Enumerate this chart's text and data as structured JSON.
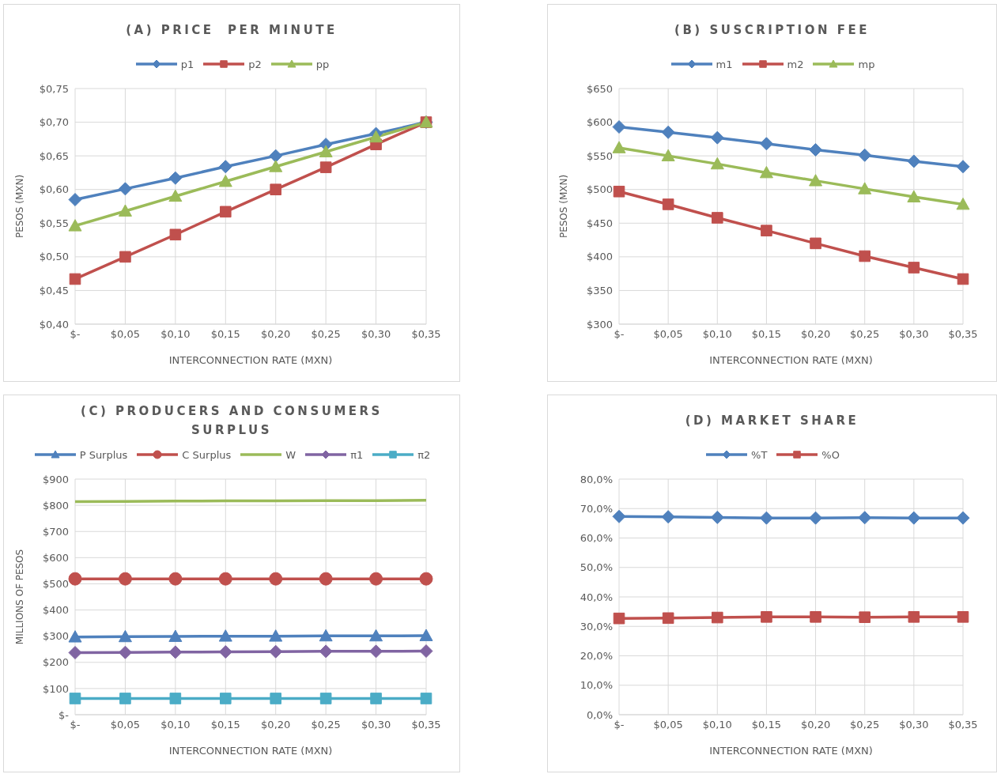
{
  "chart_data": [
    {
      "type": "line",
      "title": "(A) PRICE  PER MINUTE",
      "xlabel": "INTERCONNECTION RATE (MXN)",
      "ylabel": "PESOS (MXN)",
      "categories": [
        "$-",
        "$0,05",
        "$0,10",
        "$0,15",
        "$0,20",
        "$0,25",
        "$0,30",
        "$0,35"
      ],
      "ylim": [
        0.4,
        0.75
      ],
      "yticks": [
        {
          "value": 0.4,
          "label": "$0,40"
        },
        {
          "value": 0.45,
          "label": "$0,45"
        },
        {
          "value": 0.5,
          "label": "$0,50"
        },
        {
          "value": 0.55,
          "label": "$0,55"
        },
        {
          "value": 0.6,
          "label": "$0,60"
        },
        {
          "value": 0.65,
          "label": "$0,65"
        },
        {
          "value": 0.7,
          "label": "$0,70"
        },
        {
          "value": 0.75,
          "label": "$0,75"
        }
      ],
      "grid": true,
      "legend": "top",
      "series": [
        {
          "name": "p1",
          "color": "#4f81bd",
          "marker": "diamond",
          "values": [
            0.585,
            0.601,
            0.617,
            0.634,
            0.65,
            0.667,
            0.683,
            0.7
          ]
        },
        {
          "name": "p2",
          "color": "#c0504d",
          "marker": "square",
          "values": [
            0.467,
            0.5,
            0.533,
            0.567,
            0.6,
            0.633,
            0.667,
            0.7
          ]
        },
        {
          "name": "pp",
          "color": "#9bbb59",
          "marker": "triangle",
          "values": [
            0.546,
            0.568,
            0.59,
            0.612,
            0.634,
            0.656,
            0.678,
            0.7
          ]
        }
      ]
    },
    {
      "type": "line",
      "title": "(B) SUSCRIPTION FEE",
      "xlabel": "INTERCONNECTION RATE (MXN)",
      "ylabel": "PESOS (MXN)",
      "categories": [
        "$-",
        "$0,05",
        "$0,10",
        "$0,15",
        "$0,20",
        "$0,25",
        "$0,30",
        "$0,35"
      ],
      "ylim": [
        300,
        650
      ],
      "yticks": [
        {
          "value": 300,
          "label": "$300"
        },
        {
          "value": 350,
          "label": "$350"
        },
        {
          "value": 400,
          "label": "$400"
        },
        {
          "value": 450,
          "label": "$450"
        },
        {
          "value": 500,
          "label": "$500"
        },
        {
          "value": 550,
          "label": "$550"
        },
        {
          "value": 600,
          "label": "$600"
        },
        {
          "value": 650,
          "label": "$650"
        }
      ],
      "grid": true,
      "legend": "top",
      "series": [
        {
          "name": "m1",
          "color": "#4f81bd",
          "marker": "diamond",
          "values": [
            593,
            585,
            577,
            568,
            559,
            551,
            542,
            534
          ]
        },
        {
          "name": "m2",
          "color": "#c0504d",
          "marker": "square",
          "values": [
            497,
            478,
            458,
            439,
            420,
            401,
            384,
            367
          ]
        },
        {
          "name": "mp",
          "color": "#9bbb59",
          "marker": "triangle",
          "values": [
            562,
            550,
            538,
            525,
            513,
            501,
            489,
            478
          ]
        }
      ]
    },
    {
      "type": "line",
      "title": "(C) PRODUCERS AND CONSUMERS SURPLUS",
      "xlabel": "INTERCONNECTION RATE (MXN)",
      "ylabel": "MILLIONS OF PESOS",
      "categories": [
        "$-",
        "$0,05",
        "$0,10",
        "$0,15",
        "$0,20",
        "$0,25",
        "$0,30",
        "$0,35"
      ],
      "ylim": [
        0,
        900
      ],
      "yticks": [
        {
          "value": 0,
          "label": "$-"
        },
        {
          "value": 100,
          "label": "$100"
        },
        {
          "value": 200,
          "label": "$200"
        },
        {
          "value": 300,
          "label": "$300"
        },
        {
          "value": 400,
          "label": "$400"
        },
        {
          "value": 500,
          "label": "$500"
        },
        {
          "value": 600,
          "label": "$600"
        },
        {
          "value": 700,
          "label": "$700"
        },
        {
          "value": 800,
          "label": "$800"
        },
        {
          "value": 900,
          "label": "$900"
        }
      ],
      "grid": true,
      "legend": "top",
      "series": [
        {
          "name": "P Surplus",
          "color": "#4f81bd",
          "marker": "triangle",
          "values": [
            297,
            298,
            299,
            300,
            300,
            301,
            301,
            302
          ]
        },
        {
          "name": "C Surplus",
          "color": "#c0504d",
          "marker": "circle",
          "values": [
            519,
            519,
            519,
            519,
            519,
            519,
            519,
            519
          ]
        },
        {
          "name": "W",
          "color": "#9bbb59",
          "marker": "none",
          "values": [
            814,
            815,
            816,
            817,
            817,
            818,
            818,
            819
          ]
        },
        {
          "name": "π1",
          "color": "#8064a2",
          "marker": "diamond",
          "values": [
            237,
            238,
            239,
            240,
            241,
            242,
            242,
            243
          ]
        },
        {
          "name": "π2",
          "color": "#4bacc6",
          "marker": "square",
          "values": [
            62,
            62,
            62,
            62,
            62,
            62,
            62,
            62
          ]
        }
      ]
    },
    {
      "type": "line",
      "title": "(D) MARKET SHARE",
      "xlabel": "INTERCONNECTION RATE (MXN)",
      "categories": [
        "$-",
        "$0,05",
        "$0,10",
        "$0,15",
        "$0,20",
        "$0,25",
        "$0,30",
        "$0,35"
      ],
      "ylim": [
        0,
        80
      ],
      "yticks": [
        {
          "value": 0,
          "label": "0,0%"
        },
        {
          "value": 10,
          "label": "10,0%"
        },
        {
          "value": 20,
          "label": "20,0%"
        },
        {
          "value": 30,
          "label": "30,0%"
        },
        {
          "value": 40,
          "label": "40,0%"
        },
        {
          "value": 50,
          "label": "50,0%"
        },
        {
          "value": 60,
          "label": "60,0%"
        },
        {
          "value": 70,
          "label": "70,0%"
        },
        {
          "value": 80,
          "label": "80,0%"
        }
      ],
      "grid": true,
      "legend": "top",
      "series": [
        {
          "name": "%T",
          "color": "#4f81bd",
          "marker": "diamond",
          "values": [
            67.3,
            67.2,
            67.0,
            66.8,
            66.8,
            66.9,
            66.8,
            66.8
          ]
        },
        {
          "name": "%O",
          "color": "#c0504d",
          "marker": "square",
          "values": [
            32.7,
            32.8,
            33.0,
            33.2,
            33.2,
            33.1,
            33.2,
            33.2
          ]
        }
      ]
    }
  ]
}
